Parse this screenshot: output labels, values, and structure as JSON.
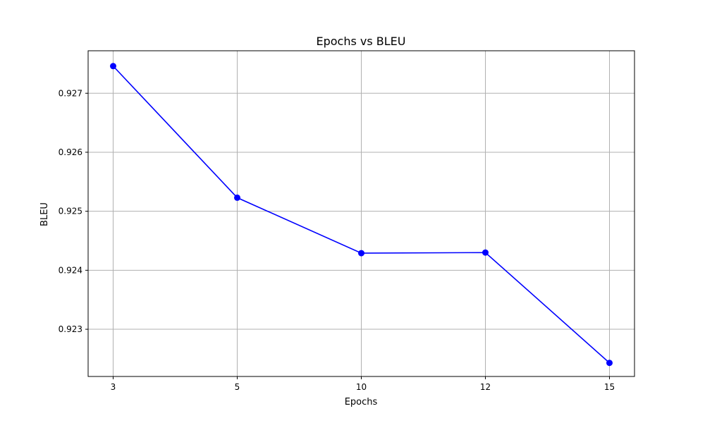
{
  "chart_data": {
    "type": "line",
    "title": "Epochs vs BLEU",
    "xlabel": "Epochs",
    "ylabel": "BLEU",
    "categories": [
      "3",
      "5",
      "10",
      "12",
      "15"
    ],
    "series": [
      {
        "values": [
          0.92746,
          0.92523,
          0.92429,
          0.9243,
          0.92243
        ],
        "color": "#0000ff",
        "marker": "circle"
      }
    ],
    "yticks": [
      "0.923",
      "0.924",
      "0.925",
      "0.926",
      "0.927"
    ],
    "ylim": [
      0.9222,
      0.92772
    ],
    "grid": true
  }
}
